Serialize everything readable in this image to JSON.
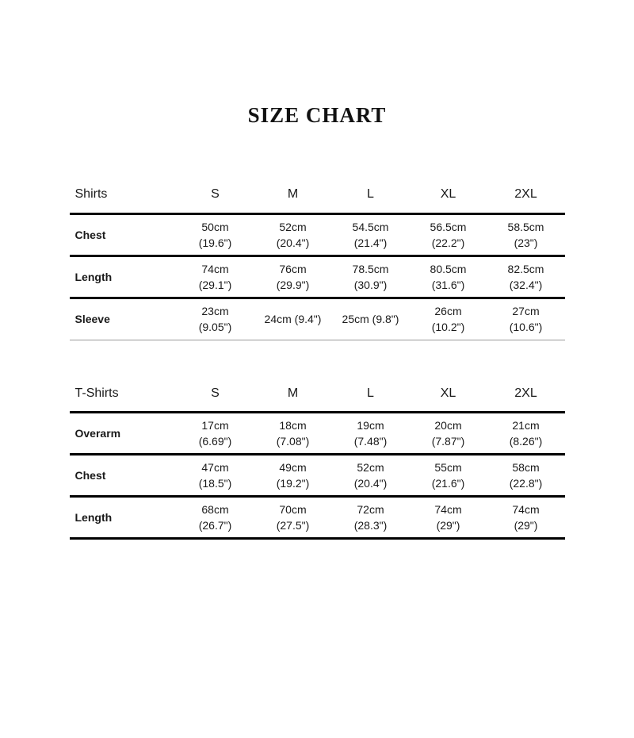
{
  "title": "SIZE CHART",
  "colors": {
    "text": "#1a1a1a",
    "thick_line": "#000000",
    "thin_line": "#999999",
    "background": "#ffffff"
  },
  "tables": [
    {
      "name": "Shirts",
      "header": [
        "Shirts",
        "S",
        "M",
        "L",
        "XL",
        "2XL"
      ],
      "rows": [
        {
          "label": "Chest",
          "cells": [
            "50cm\n(19.6\")",
            "52cm\n(20.4\")",
            "54.5cm\n(21.4\")",
            "56.5cm\n(22.2\")",
            "58.5cm\n(23\")"
          ]
        },
        {
          "label": "Length",
          "cells": [
            "74cm\n(29.1\")",
            "76cm\n(29.9\")",
            "78.5cm\n(30.9\")",
            "80.5cm\n(31.6\")",
            "82.5cm\n(32.4\")"
          ]
        },
        {
          "label": "Sleeve",
          "cells": [
            "23cm\n(9.05\")",
            "24cm (9.4\")",
            "25cm (9.8\")",
            "26cm\n(10.2\")",
            "27cm\n(10.6\")"
          ]
        }
      ]
    },
    {
      "name": "T-Shirts",
      "header": [
        "T-Shirts",
        "S",
        "M",
        "L",
        "XL",
        "2XL"
      ],
      "rows": [
        {
          "label": "Overarm",
          "cells": [
            "17cm\n(6.69\")",
            "18cm\n(7.08\")",
            "19cm\n(7.48\")",
            "20cm\n(7.87\")",
            "21cm\n(8.26\")"
          ]
        },
        {
          "label": "Chest",
          "cells": [
            "47cm\n(18.5\")",
            "49cm\n(19.2\")",
            "52cm\n(20.4\")",
            "55cm\n(21.6\")",
            "58cm\n(22.8\")"
          ]
        },
        {
          "label": "Length",
          "cells": [
            "68cm\n(26.7\")",
            "70cm\n(27.5\")",
            "72cm\n(28.3\")",
            "74cm\n(29\")",
            "74cm\n(29\")"
          ]
        }
      ]
    }
  ]
}
